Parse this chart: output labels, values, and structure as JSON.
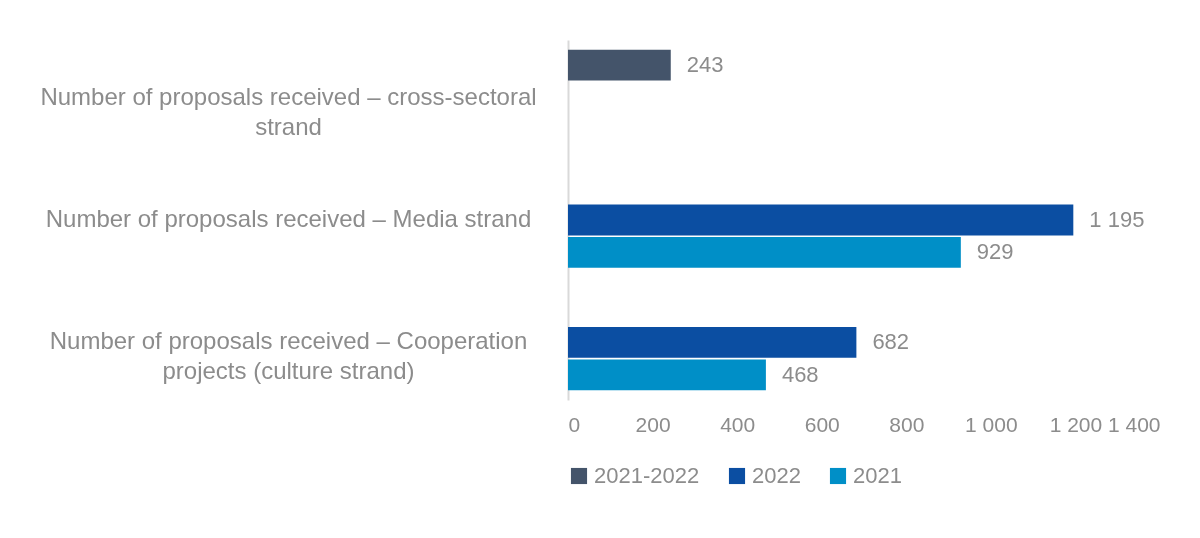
{
  "chart_data": {
    "type": "bar",
    "orientation": "horizontal",
    "categories": [
      "Number of proposals received – cross-sectoral strand",
      "Number of proposals received – Media strand",
      "Number of proposals received – Cooperation projects (culture strand)"
    ],
    "series": [
      {
        "name": "2021-2022",
        "color": "#44546a",
        "values": [
          243,
          null,
          null
        ],
        "value_labels": [
          "243",
          null,
          null
        ]
      },
      {
        "name": "2022",
        "color": "#0b4ea2",
        "values": [
          null,
          1195,
          682
        ],
        "value_labels": [
          null,
          "1 195",
          "682"
        ]
      },
      {
        "name": "2021",
        "color": "#008fc7",
        "values": [
          null,
          929,
          468
        ],
        "value_labels": [
          null,
          "929",
          "468"
        ]
      }
    ],
    "xlim": [
      0,
      1400
    ],
    "xticks": [
      0,
      200,
      400,
      600,
      800,
      {
        "value": 1000,
        "label": "1 000"
      },
      {
        "value": 1200,
        "label": "1 200"
      },
      {
        "value": 1400,
        "label": "1 400"
      }
    ],
    "grid": false,
    "legend": "bottom"
  }
}
